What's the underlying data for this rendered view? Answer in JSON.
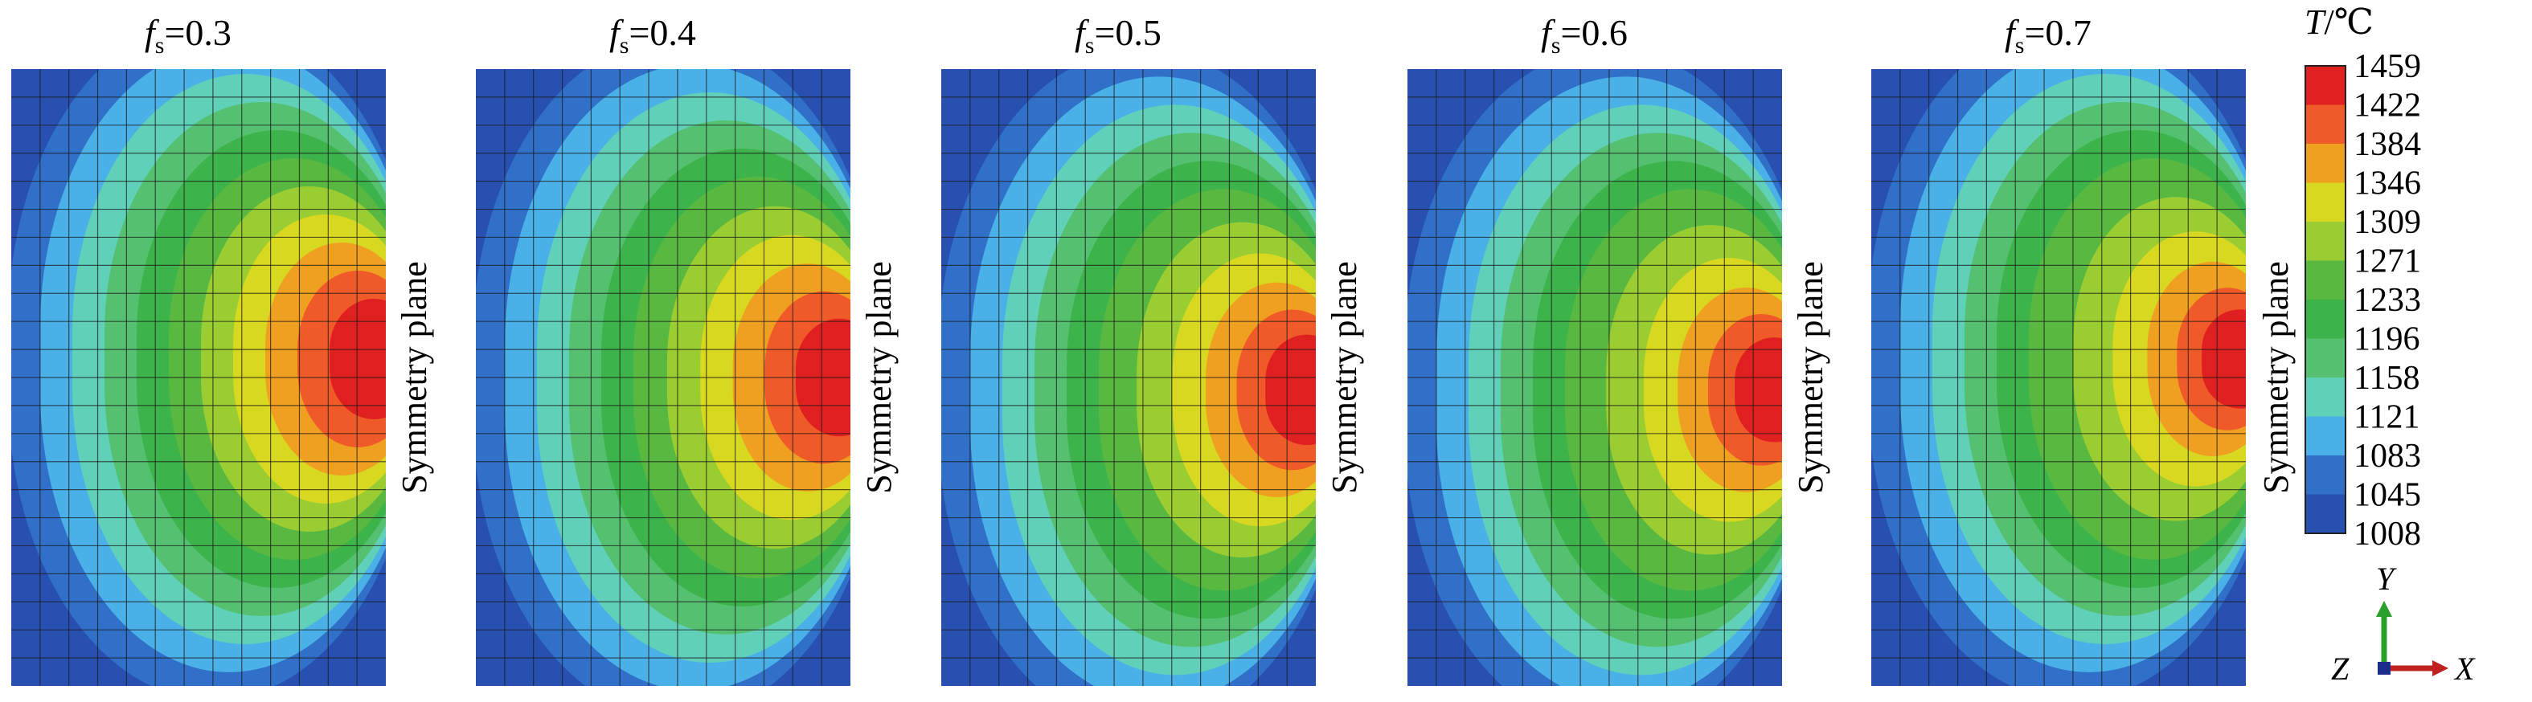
{
  "panels": [
    {
      "fs_symbol": "f",
      "fs_sub": "s",
      "fs_value": "=0.3",
      "side_label": "Symmetry plane",
      "hot_center_y": 0.47,
      "hot_core_scale": 1.0
    },
    {
      "fs_symbol": "f",
      "fs_sub": "s",
      "fs_value": "=0.4",
      "side_label": "Symmetry plane",
      "hot_center_y": 0.5,
      "hot_core_scale": 0.95
    },
    {
      "fs_symbol": "f",
      "fs_sub": "s",
      "fs_value": "=0.5",
      "side_label": "Symmetry plane",
      "hot_center_y": 0.52,
      "hot_core_scale": 0.82
    },
    {
      "fs_symbol": "f",
      "fs_sub": "s",
      "fs_value": "=0.6",
      "side_label": "Symmetry plane",
      "hot_center_y": 0.52,
      "hot_core_scale": 0.72
    },
    {
      "fs_symbol": "f",
      "fs_sub": "s",
      "fs_value": "=0.7",
      "side_label": "Symmetry plane",
      "hot_center_y": 0.47,
      "hot_core_scale": 0.62
    }
  ],
  "legend": {
    "title_symbol": "T",
    "title_unit": "/℃",
    "levels": [
      "1459",
      "1422",
      "1384",
      "1346",
      "1309",
      "1271",
      "1233",
      "1196",
      "1158",
      "1121",
      "1083",
      "1045",
      "1008"
    ],
    "colors": [
      "#e02020",
      "#f05a28",
      "#f0a020",
      "#d8d820",
      "#9acd32",
      "#58b840",
      "#3cb44b",
      "#55c070",
      "#60d0b8",
      "#4ab0e8",
      "#3070c8",
      "#2850b0"
    ]
  },
  "axes": {
    "y_label": "Y",
    "x_label": "X",
    "z_label": "Z"
  }
}
